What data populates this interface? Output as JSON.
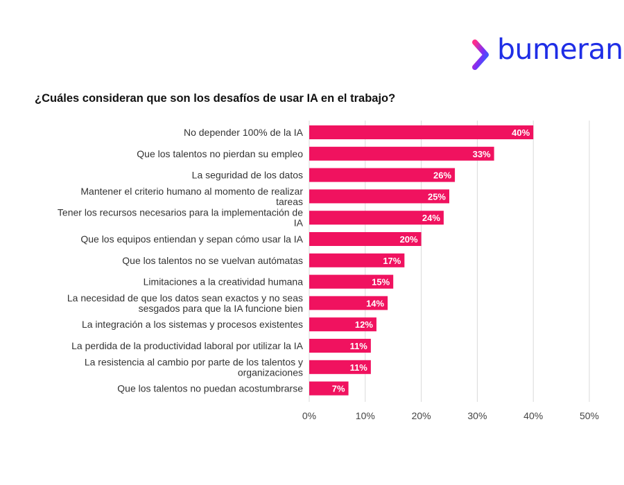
{
  "brand": {
    "name": "bumeran",
    "text_color": "#1f2ee6",
    "mark_colors": [
      "#ff2d8a",
      "#7b2ff7",
      "#1f6bff"
    ]
  },
  "chart_data": {
    "type": "bar",
    "orientation": "horizontal",
    "title": "¿Cuáles consideran que son los desafíos de usar IA en el trabajo?",
    "xlabel": "",
    "ylabel": "",
    "xlim": [
      0,
      50
    ],
    "x_ticks": [
      0,
      10,
      20,
      30,
      40,
      50
    ],
    "x_tick_labels": [
      "0%",
      "10%",
      "20%",
      "30%",
      "40%",
      "50%"
    ],
    "grid": true,
    "bar_color": "#f0125f",
    "label_color": "#ffffff",
    "categories": [
      "No depender 100% de la IA",
      "Que los talentos no pierdan su empleo",
      "La seguridad de los datos",
      "Mantener el criterio humano al momento de realizar tareas",
      "Tener los recursos necesarios para la implementación de IA",
      "Que los equipos entiendan y sepan cómo usar la IA",
      "Que los talentos no se vuelvan autómatas",
      "Limitaciones a la creatividad humana",
      "La necesidad de que los datos sean exactos y no seas sesgados para que la IA funcione bien",
      "La integración a los sistemas y procesos existentes",
      "La perdida de la productividad laboral por utilizar la IA",
      "La resistencia al cambio por parte de los talentos y organizaciones",
      "Que los talentos no puedan acostumbrarse"
    ],
    "category_lines": [
      [
        "No depender 100% de la IA"
      ],
      [
        "Que los talentos no pierdan su empleo"
      ],
      [
        "La seguridad de los datos"
      ],
      [
        "Mantener el criterio humano al momento de realizar",
        "tareas"
      ],
      [
        "Tener los recursos necesarios para la implementación de",
        "IA"
      ],
      [
        "Que los equipos entiendan y sepan cómo usar la IA"
      ],
      [
        "Que los talentos no se vuelvan autómatas"
      ],
      [
        "Limitaciones a la creatividad humana"
      ],
      [
        "La necesidad de que los datos sean exactos y no seas",
        "sesgados para que la IA funcione bien"
      ],
      [
        "La integración a los sistemas y procesos existentes"
      ],
      [
        "La perdida de la productividad laboral por utilizar la IA"
      ],
      [
        "La resistencia al cambio por parte de los talentos y",
        "organizaciones"
      ],
      [
        "Que los talentos no puedan acostumbrarse"
      ]
    ],
    "values": [
      40,
      33,
      26,
      25,
      24,
      20,
      17,
      15,
      14,
      12,
      11,
      11,
      7
    ],
    "value_labels": [
      "40%",
      "33%",
      "26%",
      "25%",
      "24%",
      "20%",
      "17%",
      "15%",
      "14%",
      "12%",
      "11%",
      "11%",
      "7%"
    ]
  }
}
